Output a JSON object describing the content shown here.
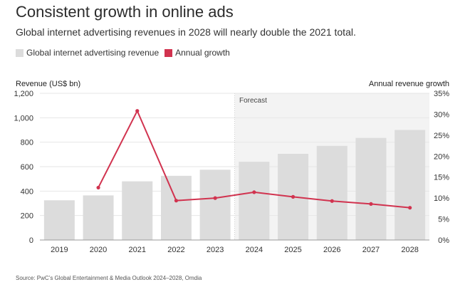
{
  "header": {
    "title": "Consistent growth in online ads",
    "subtitle": "Global internet advertising revenues in 2028 will nearly double the 2021 total."
  },
  "legend": {
    "revenue_label": "Global internet advertising revenue",
    "growth_label": "Annual growth"
  },
  "source": "Source: PwC’s Global Entertainment & Media Outlook 2024–2028, Omdia",
  "colors": {
    "bar": "#dcdcdc",
    "line": "#d1334f",
    "forecast_bg": "#f3f3f3",
    "grid": "#e6e6e6"
  },
  "chart_data": {
    "type": "bar+line",
    "categories": [
      "2019",
      "2020",
      "2021",
      "2022",
      "2023",
      "2024",
      "2025",
      "2026",
      "2027",
      "2028"
    ],
    "series": [
      {
        "name": "Global internet advertising revenue",
        "type": "bar",
        "axis": "left",
        "values": [
          325,
          365,
          480,
          525,
          575,
          640,
          705,
          770,
          835,
          900
        ]
      },
      {
        "name": "Annual growth",
        "type": "line",
        "axis": "right",
        "values": [
          null,
          12.5,
          30.8,
          9.4,
          10.0,
          11.4,
          10.3,
          9.3,
          8.6,
          7.7
        ]
      }
    ],
    "ylabel": "Revenue (US$ bn)",
    "y2label": "Annual revenue growth",
    "ylim": [
      0,
      1200
    ],
    "yticks": [
      0,
      200,
      400,
      600,
      800,
      1000,
      1200
    ],
    "ytick_labels": [
      "0",
      "200",
      "400",
      "600",
      "800",
      "1,000",
      "1,200"
    ],
    "y2lim": [
      0,
      35
    ],
    "y2ticks": [
      0,
      5,
      10,
      15,
      20,
      25,
      30,
      35
    ],
    "y2tick_labels": [
      "0%",
      "5%",
      "10%",
      "15%",
      "20%",
      "25%",
      "30%",
      "35%"
    ],
    "forecast_label": "Forecast",
    "forecast_start": "2024",
    "grid": true
  }
}
